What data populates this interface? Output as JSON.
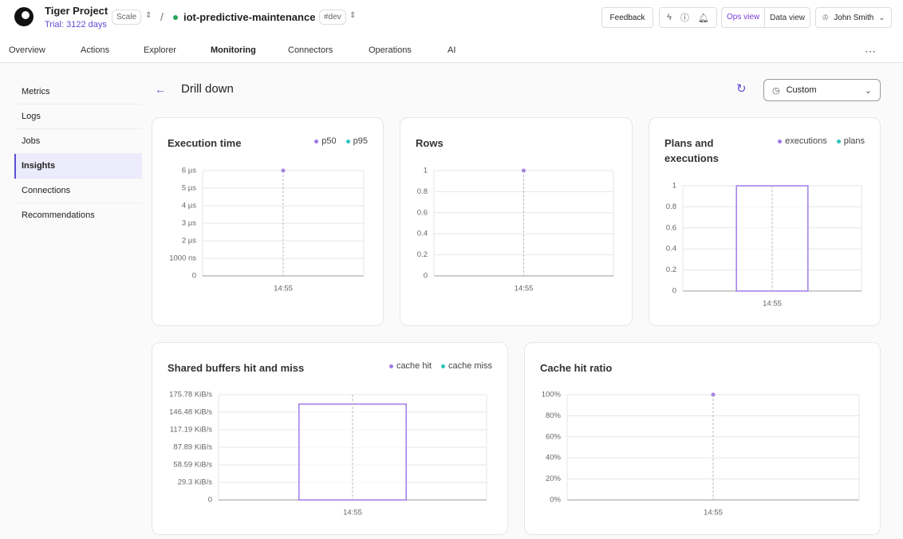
{
  "header": {
    "project": "Tiger Project",
    "trial": "Trial: 3122 days",
    "plan": "Scale",
    "service": "iot-predictive-maintenance",
    "env": "#dev",
    "feedback": "Feedback",
    "ops_view": "Ops view",
    "data_view": "Data view",
    "user": "John Smith"
  },
  "tabs": {
    "items": [
      "Overview",
      "Actions",
      "Explorer",
      "Monitoring",
      "Connectors",
      "Operations",
      "AI"
    ],
    "active": 3
  },
  "sidebar": {
    "items": [
      "Metrics",
      "Logs",
      "Jobs",
      "Insights",
      "Connections",
      "Recommendations"
    ],
    "active": 3
  },
  "page": {
    "title": "Drill down",
    "range": "Custom"
  },
  "chart_data": [
    {
      "type": "line",
      "title": "Execution time",
      "categories": [
        "14:55"
      ],
      "series": [
        {
          "name": "p50",
          "color": "#a07ce8",
          "values": [
            6
          ]
        },
        {
          "name": "p95",
          "color": "#2bc5be",
          "values": [
            null
          ]
        }
      ],
      "ylim": [
        0,
        6
      ],
      "yticks": [
        0,
        {
          "value": 1,
          "label": "1000 ns"
        },
        {
          "value": 2,
          "label": "2 µs"
        },
        {
          "value": 3,
          "label": "3 µs"
        },
        {
          "value": 4,
          "label": "4 µs"
        },
        {
          "value": 5,
          "label": "5 µs"
        },
        {
          "value": 6,
          "label": "6 µs"
        }
      ],
      "grid": true
    },
    {
      "type": "line",
      "title": "Rows",
      "categories": [
        "14:55"
      ],
      "color": "#a07ce8",
      "values": [
        1
      ],
      "ylim": [
        0,
        1
      ],
      "yticks": [
        0,
        0.2,
        0.4,
        0.6,
        0.8,
        1
      ],
      "grid": true
    },
    {
      "type": "bar",
      "title": "Plans and executions",
      "categories": [
        "14:55"
      ],
      "series": [
        {
          "name": "executions",
          "color": "#a07ce8",
          "values": [
            1
          ]
        },
        {
          "name": "plans",
          "color": "#2bc5be",
          "values": [
            null
          ]
        }
      ],
      "ylim": [
        0,
        1
      ],
      "yticks": [
        0,
        0.2,
        0.4,
        0.6,
        0.8,
        1
      ],
      "grid": true
    },
    {
      "type": "bar",
      "title": "Shared buffers hit and miss",
      "categories": [
        "14:55"
      ],
      "series": [
        {
          "name": "cache hit",
          "color": "#a07ce8",
          "values": [
            160
          ]
        },
        {
          "name": "cache miss",
          "color": "#2bc5be",
          "values": [
            null
          ]
        }
      ],
      "ylim": [
        0,
        175.78
      ],
      "yticks": [
        0,
        {
          "value": 29.3,
          "label": "29.3 KiB/s"
        },
        {
          "value": 58.59,
          "label": "58.59 KiB/s"
        },
        {
          "value": 87.89,
          "label": "87.89 KiB/s"
        },
        {
          "value": 117.19,
          "label": "117.19 KiB/s"
        },
        {
          "value": 146.48,
          "label": "146.48 KiB/s"
        },
        {
          "value": 175.78,
          "label": "175.78 KiB/s"
        }
      ],
      "grid": true
    },
    {
      "type": "line",
      "title": "Cache hit ratio",
      "categories": [
        "14:55"
      ],
      "color": "#a07ce8",
      "values": [
        100
      ],
      "ylim": [
        0,
        100
      ],
      "yticks": [
        {
          "value": 0,
          "label": "0%"
        },
        {
          "value": 20,
          "label": "20%"
        },
        {
          "value": 40,
          "label": "40%"
        },
        {
          "value": 60,
          "label": "60%"
        },
        {
          "value": 80,
          "label": "80%"
        },
        {
          "value": 100,
          "label": "100%"
        }
      ],
      "grid": true
    }
  ]
}
